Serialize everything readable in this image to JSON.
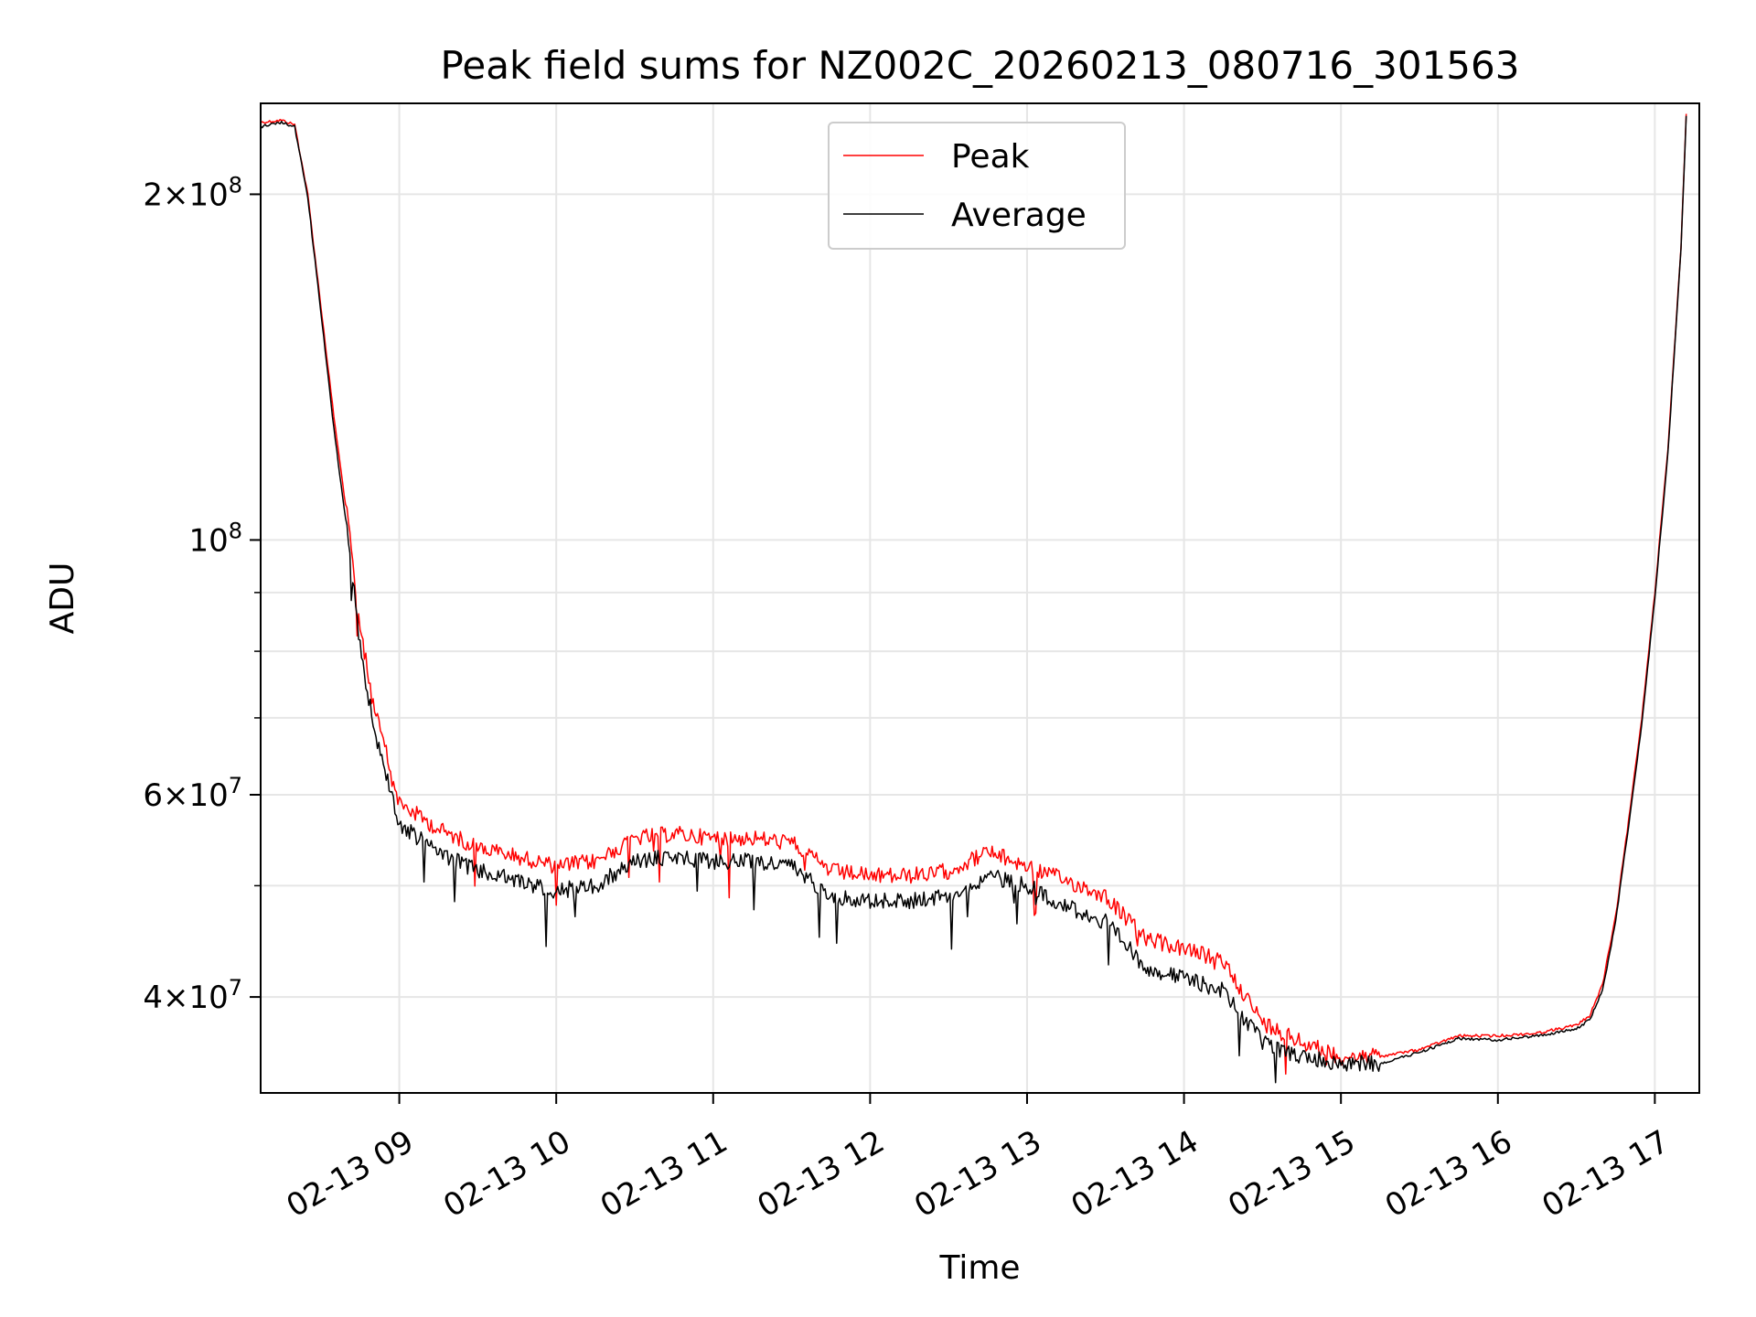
{
  "chart_data": {
    "type": "line",
    "title": "Peak field sums for NZ002C_20260213_080716_301563",
    "xlabel": "Time",
    "ylabel": "ADU",
    "y_scale": "log",
    "ylim": [
      33000000,
      240000000
    ],
    "xlim": [
      "2026-02-13 08:07",
      "2026-02-13 17:17"
    ],
    "grid": true,
    "legend_position": "top-center",
    "x_ticks": [
      "2026-02-13 09:00",
      "2026-02-13 10:00",
      "2026-02-13 11:00",
      "2026-02-13 12:00",
      "2026-02-13 13:00",
      "2026-02-13 14:00",
      "2026-02-13 15:00",
      "2026-02-13 16:00",
      "2026-02-13 17:00"
    ],
    "x_tick_labels": [
      "02-13 09",
      "02-13 10",
      "02-13 11",
      "02-13 12",
      "02-13 13",
      "02-13 14",
      "02-13 15",
      "02-13 16",
      "02-13 17"
    ],
    "y_major_ticks": [
      {
        "value": 40000000,
        "base": "4×10",
        "exp": "7"
      },
      {
        "value": 60000000,
        "base": "6×10",
        "exp": "7"
      },
      {
        "value": 100000000,
        "base": "10",
        "exp": "8"
      },
      {
        "value": 200000000,
        "base": "2×10",
        "exp": "8"
      }
    ],
    "y_minor_ticks": [
      50000000,
      70000000,
      80000000,
      90000000
    ],
    "series": [
      {
        "name": "Peak",
        "color": "#ff0000",
        "x": [
          "2026-02-13 08:07",
          "2026-02-13 08:15",
          "2026-02-13 08:20",
          "2026-02-13 08:25",
          "2026-02-13 08:30",
          "2026-02-13 08:35",
          "2026-02-13 08:40",
          "2026-02-13 08:45",
          "2026-02-13 08:50",
          "2026-02-13 09:00",
          "2026-02-13 09:15",
          "2026-02-13 09:30",
          "2026-02-13 09:45",
          "2026-02-13 10:00",
          "2026-02-13 10:15",
          "2026-02-13 10:30",
          "2026-02-13 10:45",
          "2026-02-13 11:00",
          "2026-02-13 11:15",
          "2026-02-13 11:30",
          "2026-02-13 11:45",
          "2026-02-13 12:00",
          "2026-02-13 12:15",
          "2026-02-13 12:30",
          "2026-02-13 12:45",
          "2026-02-13 13:00",
          "2026-02-13 13:15",
          "2026-02-13 13:30",
          "2026-02-13 13:45",
          "2026-02-13 14:00",
          "2026-02-13 14:15",
          "2026-02-13 14:30",
          "2026-02-13 14:45",
          "2026-02-13 15:00",
          "2026-02-13 15:15",
          "2026-02-13 15:30",
          "2026-02-13 15:45",
          "2026-02-13 16:00",
          "2026-02-13 16:15",
          "2026-02-13 16:30",
          "2026-02-13 16:35",
          "2026-02-13 16:40",
          "2026-02-13 16:45",
          "2026-02-13 16:50",
          "2026-02-13 16:55",
          "2026-02-13 17:00",
          "2026-02-13 17:05",
          "2026-02-13 17:10",
          "2026-02-13 17:12"
        ],
        "values": [
          231000000,
          232000000,
          230000000,
          200000000,
          160000000,
          128000000,
          105000000,
          84000000,
          72000000,
          59000000,
          56000000,
          54000000,
          53000000,
          52000000,
          52500000,
          55000000,
          55500000,
          55000000,
          55000000,
          54500000,
          51500000,
          51000000,
          51000000,
          51500000,
          53500000,
          52000000,
          50500000,
          49000000,
          45000000,
          44000000,
          43000000,
          38000000,
          36500000,
          35500000,
          35500000,
          36000000,
          37000000,
          37000000,
          37200000,
          37800000,
          38500000,
          41000000,
          47000000,
          57000000,
          70000000,
          90000000,
          120000000,
          180000000,
          235000000
        ]
      },
      {
        "name": "Average",
        "color": "#000000",
        "x": [
          "2026-02-13 08:07",
          "2026-02-13 08:15",
          "2026-02-13 08:20",
          "2026-02-13 08:25",
          "2026-02-13 08:30",
          "2026-02-13 08:35",
          "2026-02-13 08:40",
          "2026-02-13 08:45",
          "2026-02-13 08:50",
          "2026-02-13 09:00",
          "2026-02-13 09:15",
          "2026-02-13 09:30",
          "2026-02-13 09:45",
          "2026-02-13 10:00",
          "2026-02-13 10:15",
          "2026-02-13 10:30",
          "2026-02-13 10:45",
          "2026-02-13 11:00",
          "2026-02-13 11:15",
          "2026-02-13 11:30",
          "2026-02-13 11:45",
          "2026-02-13 12:00",
          "2026-02-13 12:15",
          "2026-02-13 12:30",
          "2026-02-13 12:45",
          "2026-02-13 13:00",
          "2026-02-13 13:15",
          "2026-02-13 13:30",
          "2026-02-13 13:45",
          "2026-02-13 14:00",
          "2026-02-13 14:15",
          "2026-02-13 14:30",
          "2026-02-13 14:45",
          "2026-02-13 15:00",
          "2026-02-13 15:15",
          "2026-02-13 15:30",
          "2026-02-13 15:45",
          "2026-02-13 16:00",
          "2026-02-13 16:15",
          "2026-02-13 16:30",
          "2026-02-13 16:35",
          "2026-02-13 16:40",
          "2026-02-13 16:45",
          "2026-02-13 16:50",
          "2026-02-13 16:55",
          "2026-02-13 17:00",
          "2026-02-13 17:05",
          "2026-02-13 17:10",
          "2026-02-13 17:12"
        ],
        "values": [
          229000000,
          231000000,
          229000000,
          199000000,
          158000000,
          125000000,
          102000000,
          81000000,
          69000000,
          56500000,
          53500000,
          51500000,
          50500000,
          49500000,
          50000000,
          52500000,
          53000000,
          52500000,
          52500000,
          52000000,
          49000000,
          48500000,
          48500000,
          49000000,
          51000000,
          50000000,
          48000000,
          46500000,
          42500000,
          41500000,
          40500000,
          36500000,
          35500000,
          35000000,
          35000000,
          35800000,
          36800000,
          36700000,
          37000000,
          37500000,
          38200000,
          40500000,
          46500000,
          56500000,
          69000000,
          89000000,
          119000000,
          179000000,
          234000000
        ]
      }
    ]
  }
}
